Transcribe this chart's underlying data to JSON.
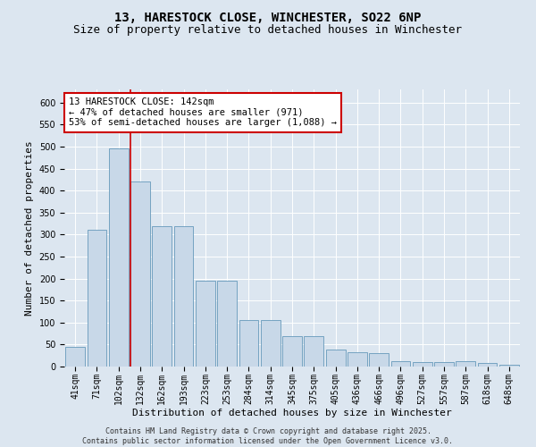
{
  "title_line1": "13, HARESTOCK CLOSE, WINCHESTER, SO22 6NP",
  "title_line2": "Size of property relative to detached houses in Winchester",
  "xlabel": "Distribution of detached houses by size in Winchester",
  "ylabel": "Number of detached properties",
  "categories": [
    "41sqm",
    "71sqm",
    "102sqm",
    "132sqm",
    "162sqm",
    "193sqm",
    "223sqm",
    "253sqm",
    "284sqm",
    "314sqm",
    "345sqm",
    "375sqm",
    "405sqm",
    "436sqm",
    "466sqm",
    "496sqm",
    "527sqm",
    "557sqm",
    "587sqm",
    "618sqm",
    "648sqm"
  ],
  "values": [
    45,
    310,
    495,
    420,
    320,
    320,
    195,
    195,
    105,
    105,
    70,
    70,
    38,
    33,
    30,
    13,
    11,
    10,
    13,
    8,
    5
  ],
  "bar_color": "#c8d8e8",
  "bar_edge_color": "#6699bb",
  "highlight_index": 3,
  "highlight_line_color": "#cc0000",
  "annotation_text": "13 HARESTOCK CLOSE: 142sqm\n← 47% of detached houses are smaller (971)\n53% of semi-detached houses are larger (1,088) →",
  "annotation_box_color": "#ffffff",
  "annotation_box_edge_color": "#cc0000",
  "ylim": [
    0,
    630
  ],
  "yticks": [
    0,
    50,
    100,
    150,
    200,
    250,
    300,
    350,
    400,
    450,
    500,
    550,
    600
  ],
  "background_color": "#dce6f0",
  "plot_background_color": "#dce6f0",
  "footer_text": "Contains HM Land Registry data © Crown copyright and database right 2025.\nContains public sector information licensed under the Open Government Licence v3.0.",
  "title_fontsize": 10,
  "subtitle_fontsize": 9,
  "axis_label_fontsize": 8,
  "tick_fontsize": 7,
  "annotation_fontsize": 7.5,
  "footer_fontsize": 6
}
